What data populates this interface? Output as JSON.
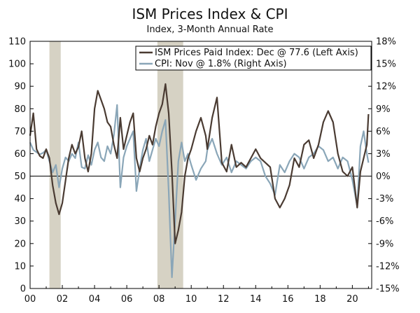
{
  "chart_data": {
    "type": "line",
    "title": "ISM Prices Index & CPI",
    "subtitle": "Index, 3-Month Annual Rate",
    "x_labels": [
      "00",
      "02",
      "04",
      "06",
      "08",
      "10",
      "12",
      "14",
      "16",
      "18",
      "20"
    ],
    "x_range": [
      2000,
      2021.2
    ],
    "left_axis": {
      "ylim": [
        0,
        110
      ],
      "ticks": [
        0,
        10,
        20,
        30,
        40,
        50,
        60,
        70,
        80,
        90,
        100,
        110
      ]
    },
    "right_axis": {
      "ylim": [
        -15,
        18
      ],
      "ticks": [
        -15,
        -12,
        -9,
        -6,
        -3,
        0,
        3,
        6,
        9,
        12,
        15,
        18
      ],
      "tick_labels": [
        "-15%",
        "-12%",
        "-9%",
        "-6%",
        "-3%",
        "0%",
        "3%",
        "6%",
        "9%",
        "12%",
        "15%",
        "18%"
      ]
    },
    "reference_line": 50,
    "recessions": [
      [
        2001.2,
        2001.9
      ],
      [
        2007.9,
        2009.5
      ]
    ],
    "colors": {
      "ism": "#4a3b32",
      "cpi": "#8aa6b8",
      "recession": "#d6d2c4",
      "axis": "#000000"
    },
    "series": [
      {
        "name": "ISM Prices Paid Index: Dec @ 77.6 (Left Axis)",
        "axis": "left",
        "color": "#4a3b32",
        "x": [
          2000.0,
          2000.2,
          2000.4,
          2000.6,
          2000.8,
          2001.0,
          2001.2,
          2001.4,
          2001.6,
          2001.8,
          2002.0,
          2002.2,
          2002.4,
          2002.6,
          2002.8,
          2003.0,
          2003.2,
          2003.4,
          2003.6,
          2003.8,
          2004.0,
          2004.2,
          2004.4,
          2004.6,
          2004.8,
          2005.0,
          2005.2,
          2005.4,
          2005.6,
          2005.8,
          2006.0,
          2006.2,
          2006.4,
          2006.6,
          2006.8,
          2007.0,
          2007.2,
          2007.4,
          2007.6,
          2007.8,
          2008.0,
          2008.2,
          2008.4,
          2008.6,
          2008.8,
          2009.0,
          2009.2,
          2009.4,
          2009.6,
          2009.8,
          2010.0,
          2010.3,
          2010.6,
          2010.9,
          2011.0,
          2011.3,
          2011.6,
          2011.9,
          2012.2,
          2012.5,
          2012.8,
          2013.1,
          2013.4,
          2013.7,
          2014.0,
          2014.3,
          2014.6,
          2014.9,
          2015.2,
          2015.5,
          2015.8,
          2016.1,
          2016.4,
          2016.7,
          2017.0,
          2017.3,
          2017.6,
          2017.9,
          2018.2,
          2018.5,
          2018.8,
          2019.1,
          2019.4,
          2019.7,
          2020.0,
          2020.3,
          2020.5,
          2020.7,
          2020.9,
          2021.0
        ],
        "values": [
          68,
          78,
          62,
          59,
          58,
          62,
          58,
          46,
          38,
          33,
          38,
          48,
          58,
          64,
          60,
          63,
          70,
          58,
          52,
          60,
          80,
          88,
          84,
          80,
          74,
          72,
          64,
          58,
          76,
          62,
          68,
          74,
          78,
          58,
          52,
          58,
          62,
          68,
          64,
          72,
          78,
          82,
          91,
          78,
          52,
          20,
          26,
          34,
          50,
          58,
          62,
          70,
          76,
          68,
          62,
          76,
          85,
          56,
          52,
          64,
          54,
          56,
          54,
          58,
          62,
          58,
          56,
          54,
          40,
          36,
          40,
          46,
          58,
          54,
          64,
          66,
          58,
          64,
          74,
          79,
          74,
          60,
          52,
          50,
          54,
          36,
          52,
          58,
          64,
          77.6
        ]
      },
      {
        "name": "CPI: Nov @ 1.8% (Right Axis)",
        "axis": "right",
        "color": "#8aa6b8",
        "x": [
          2000.0,
          2000.2,
          2000.4,
          2000.6,
          2000.8,
          2001.0,
          2001.2,
          2001.4,
          2001.6,
          2001.8,
          2002.0,
          2002.2,
          2002.4,
          2002.6,
          2002.8,
          2003.0,
          2003.2,
          2003.4,
          2003.6,
          2003.8,
          2004.0,
          2004.2,
          2004.4,
          2004.6,
          2004.8,
          2005.0,
          2005.2,
          2005.4,
          2005.6,
          2005.8,
          2006.0,
          2006.2,
          2006.4,
          2006.6,
          2006.8,
          2007.0,
          2007.2,
          2007.4,
          2007.6,
          2007.8,
          2008.0,
          2008.2,
          2008.4,
          2008.6,
          2008.8,
          2009.0,
          2009.2,
          2009.4,
          2009.6,
          2009.8,
          2010.0,
          2010.3,
          2010.6,
          2010.9,
          2011.0,
          2011.3,
          2011.6,
          2011.9,
          2012.2,
          2012.5,
          2012.8,
          2013.1,
          2013.4,
          2013.7,
          2014.0,
          2014.3,
          2014.6,
          2014.9,
          2015.2,
          2015.5,
          2015.8,
          2016.1,
          2016.4,
          2016.7,
          2017.0,
          2017.3,
          2017.6,
          2017.9,
          2018.2,
          2018.5,
          2018.8,
          2019.1,
          2019.4,
          2019.7,
          2020.0,
          2020.3,
          2020.5,
          2020.7,
          2020.9,
          2021.0
        ],
        "values": [
          4.5,
          3.5,
          3.2,
          2.9,
          3.1,
          3.5,
          2.0,
          0.5,
          1.5,
          -1.5,
          1.0,
          2.5,
          2.0,
          3.0,
          2.4,
          4.5,
          1.2,
          1.0,
          2.8,
          1.5,
          3.5,
          4.5,
          2.5,
          2.0,
          4.0,
          3.0,
          5.5,
          9.5,
          -1.5,
          2.5,
          4.0,
          5.0,
          6.0,
          -2.0,
          1.0,
          3.5,
          5.0,
          2.0,
          3.5,
          5.0,
          4.0,
          6.0,
          7.5,
          -2.0,
          -13.5,
          -6.0,
          2.0,
          4.5,
          2.0,
          3.0,
          1.5,
          -0.5,
          1.0,
          2.0,
          3.5,
          5.0,
          3.0,
          1.5,
          2.5,
          0.5,
          2.0,
          1.5,
          1.0,
          2.0,
          2.5,
          2.0,
          0.0,
          -1.0,
          -2.5,
          1.5,
          0.5,
          2.0,
          3.0,
          2.5,
          1.0,
          2.5,
          3.0,
          4.0,
          3.5,
          2.0,
          2.5,
          1.0,
          2.5,
          2.0,
          -0.5,
          -4.0,
          4.0,
          6.0,
          3.0,
          1.8
        ]
      }
    ]
  }
}
